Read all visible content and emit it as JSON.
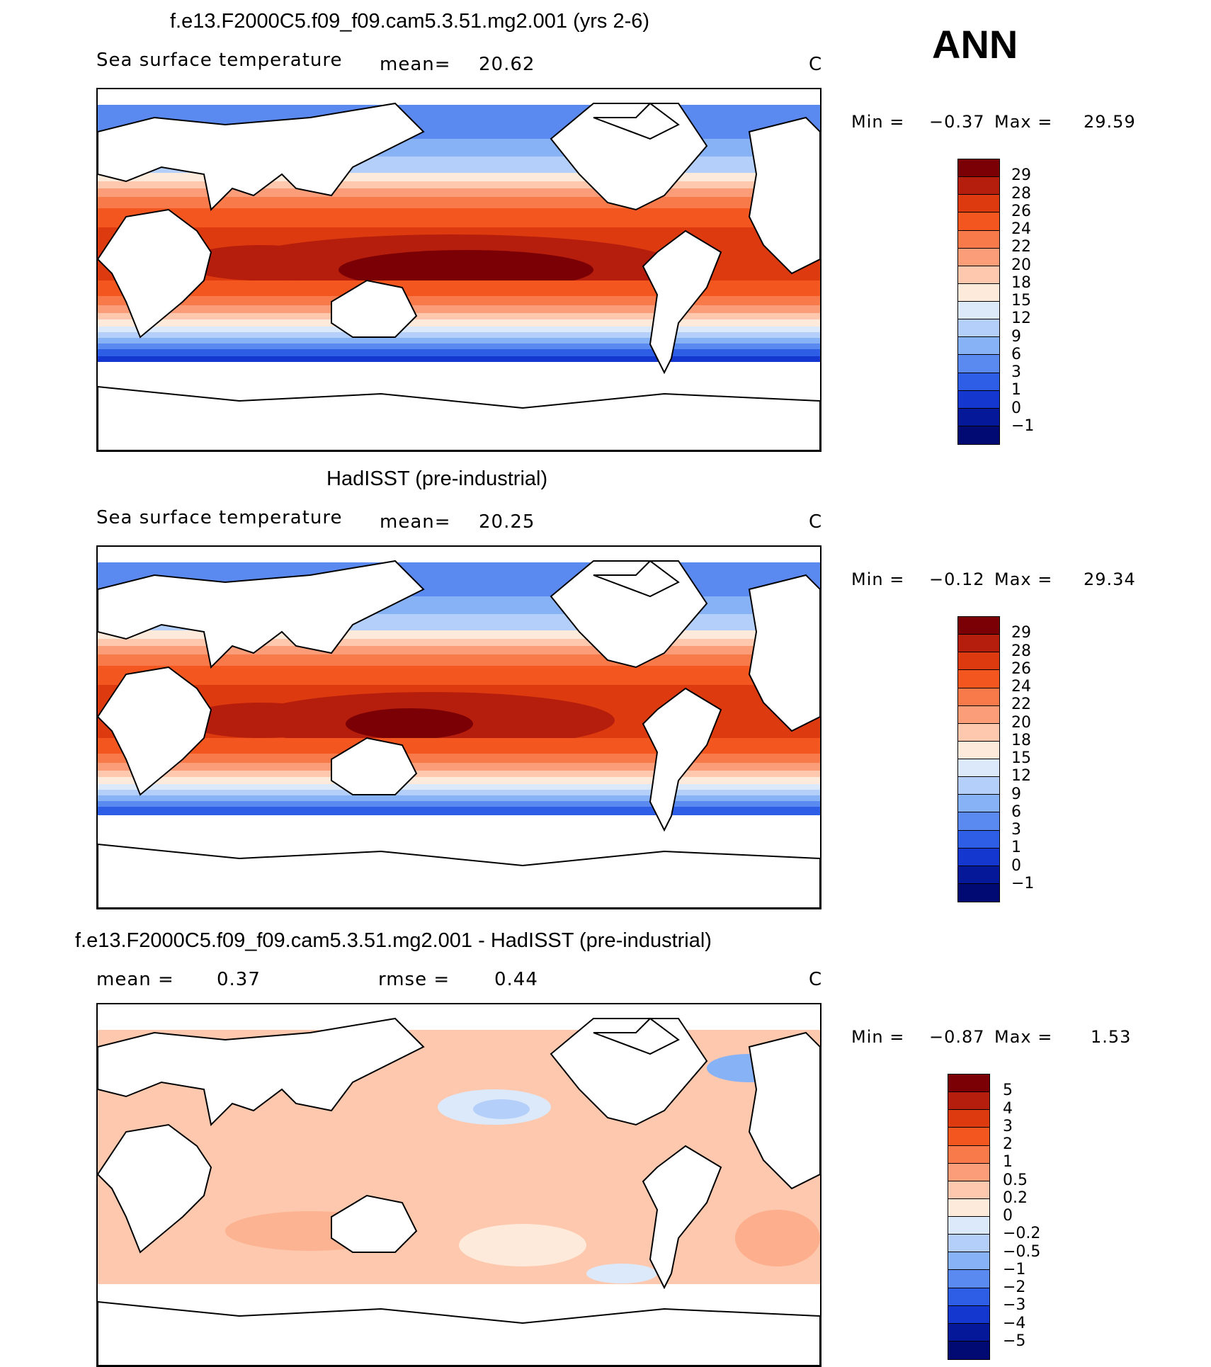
{
  "season": "ANN",
  "panels": [
    {
      "title": "f.e13.F2000C5.f09_f09.cam5.3.51.mg2.001 (yrs 2-6)",
      "left_label": "Sea surface temperature",
      "mid_label": "mean=",
      "mid_value": "20.62",
      "right_label": "",
      "right_value": "",
      "units": "C",
      "min_label": "Min =",
      "min_value": "−0.37",
      "max_label": "Max =",
      "max_value": "29.59",
      "colorbar_labels": [
        "29",
        "28",
        "26",
        "24",
        "22",
        "20",
        "18",
        "15",
        "12",
        "9",
        "6",
        "3",
        "1",
        "0",
        "−1"
      ],
      "colorbar_colors": [
        "#7a0006",
        "#b51d0c",
        "#dd3a10",
        "#f4561f",
        "#f8794a",
        "#fb9d78",
        "#fdc8ad",
        "#feeadb",
        "#dbe9fb",
        "#b4d0fa",
        "#88b2f6",
        "#5a89f0",
        "#2f5ee6",
        "#1438cf",
        "#06189a",
        "#010a72"
      ]
    },
    {
      "title": "HadISST (pre-industrial)",
      "left_label": "Sea surface temperature",
      "mid_label": "mean=",
      "mid_value": "20.25",
      "right_label": "",
      "right_value": "",
      "units": "C",
      "min_label": "Min =",
      "min_value": "−0.12",
      "max_label": "Max =",
      "max_value": "29.34",
      "colorbar_labels": [
        "29",
        "28",
        "26",
        "24",
        "22",
        "20",
        "18",
        "15",
        "12",
        "9",
        "6",
        "3",
        "1",
        "0",
        "−1"
      ],
      "colorbar_colors": [
        "#7a0006",
        "#b51d0c",
        "#dd3a10",
        "#f4561f",
        "#f8794a",
        "#fb9d78",
        "#fdc8ad",
        "#feeadb",
        "#dbe9fb",
        "#b4d0fa",
        "#88b2f6",
        "#5a89f0",
        "#2f5ee6",
        "#1438cf",
        "#06189a",
        "#010a72"
      ]
    },
    {
      "title": "f.e13.F2000C5.f09_f09.cam5.3.51.mg2.001 - HadISST (pre-industrial)",
      "left_label": "mean =",
      "left_value": "0.37",
      "mid_label": "rmse =",
      "mid_value": "0.44",
      "units": "C",
      "min_label": "Min =",
      "min_value": "−0.87",
      "max_label": "Max =",
      "max_value": "1.53",
      "colorbar_labels": [
        "5",
        "4",
        "3",
        "2",
        "1",
        "0.5",
        "0.2",
        "0",
        "−0.2",
        "−0.5",
        "−1",
        "−2",
        "−3",
        "−4",
        "−5"
      ],
      "colorbar_colors": [
        "#7a0006",
        "#b51d0c",
        "#dd3a10",
        "#f4561f",
        "#f8794a",
        "#fb9d78",
        "#fdc8ad",
        "#feeadb",
        "#dbe9fb",
        "#b4d0fa",
        "#88b2f6",
        "#5a89f0",
        "#2f5ee6",
        "#1438cf",
        "#06189a",
        "#010a72"
      ]
    }
  ],
  "colors": {
    "land": "#ffffff",
    "coast": "#000000",
    "frame": "#000000"
  }
}
